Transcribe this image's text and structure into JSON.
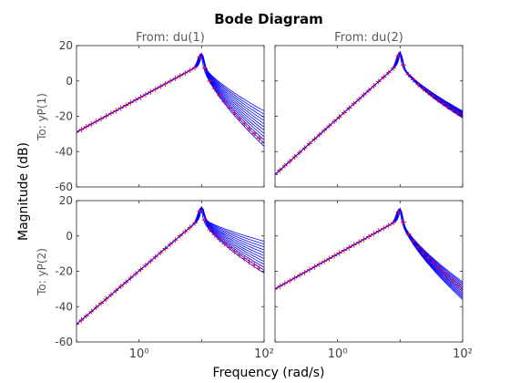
{
  "title": "Bode Diagram",
  "xlabel": "Frequency  (rad/s)",
  "ylabel": "Magnitude (dB)",
  "column_titles": [
    "From: du(1)",
    "From: du(2)"
  ],
  "row_titles": [
    "To: yP(1)",
    "To: yP(2)"
  ],
  "colors": {
    "bundle": "#0000ff",
    "marker": "#e0003c",
    "axis": "#262626",
    "text": "#404040"
  },
  "chart_data": {
    "type": "line",
    "title": "Bode Diagram",
    "xlabel": "Frequency  (rad/s)",
    "ylabel": "Magnitude (dB)",
    "x_scale": "log",
    "xlim": [
      0.1,
      100
    ],
    "ylim": [
      -60,
      20
    ],
    "x_ticks": [
      1,
      100
    ],
    "x_tick_labels": [
      "10⁰",
      "10²"
    ],
    "y_ticks": [
      20,
      0,
      -20,
      -40,
      -60
    ],
    "y_tick_labels": [
      "20",
      "0",
      "-20",
      "-40",
      "-60"
    ],
    "grid": false,
    "panels": [
      {
        "row": 1,
        "col": 1,
        "column_title": "From: du(1)",
        "row_title": "To: yP(1)",
        "resonance_x": 10,
        "start_db": -29,
        "peak_db": 14,
        "end_db_min": -37,
        "end_db_max": -17,
        "nominal_end_db": -35,
        "low_slope": "+20 dB/dec",
        "curves": 12
      },
      {
        "row": 1,
        "col": 2,
        "column_title": "From: du(2)",
        "row_title": "To: yP(1)",
        "resonance_x": 10,
        "start_db": -53,
        "peak_db": 14,
        "end_db_min": -21,
        "end_db_max": -17,
        "nominal_end_db": -20,
        "low_slope": "+40 dB/dec",
        "curves": 12
      },
      {
        "row": 2,
        "col": 1,
        "column_title": "From: du(1)",
        "row_title": "To: yP(2)",
        "resonance_x": 10,
        "start_db": -50,
        "peak_db": 14,
        "end_db_min": -21,
        "end_db_max": -3,
        "nominal_end_db": -20,
        "low_slope": "+40 dB/dec",
        "curves": 12
      },
      {
        "row": 2,
        "col": 2,
        "column_title": "From: du(2)",
        "row_title": "To: yP(2)",
        "resonance_x": 10,
        "start_db": -30,
        "peak_db": 14,
        "end_db_min": -36,
        "end_db_max": -26,
        "nominal_end_db": -30,
        "low_slope": "+20 dB/dec",
        "curves": 12
      }
    ]
  }
}
